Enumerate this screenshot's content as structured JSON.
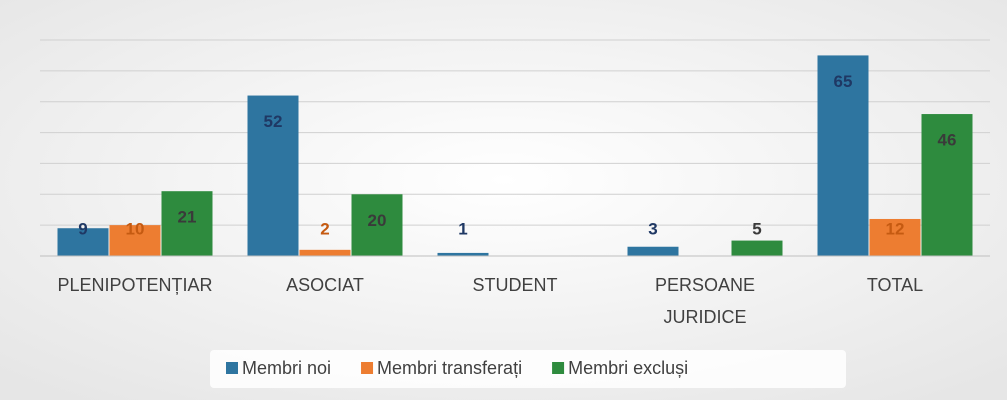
{
  "chart_data": {
    "type": "bar",
    "categories": [
      "PLENIPOTENȚIAR",
      "ASOCIAT",
      "STUDENT",
      "PERSOANE JURIDICE",
      "TOTAL"
    ],
    "series": [
      {
        "name": "Membri noi",
        "color": "#2e75a0",
        "label_color": "#1f3864",
        "values": [
          9,
          52,
          1,
          3,
          65
        ]
      },
      {
        "name": "Membri transferați",
        "color": "#ed7d31",
        "label_color": "#c55a11",
        "values": [
          10,
          2,
          null,
          null,
          12
        ]
      },
      {
        "name": "Membri excluși",
        "color": "#2e8b3e",
        "label_color": "#3a3a3a",
        "values": [
          21,
          20,
          null,
          5,
          46
        ]
      }
    ],
    "ylim": [
      0,
      70
    ],
    "yticks": [
      0,
      10,
      20,
      30,
      40,
      50,
      60,
      70
    ],
    "grid": true,
    "legend": "bottom"
  }
}
